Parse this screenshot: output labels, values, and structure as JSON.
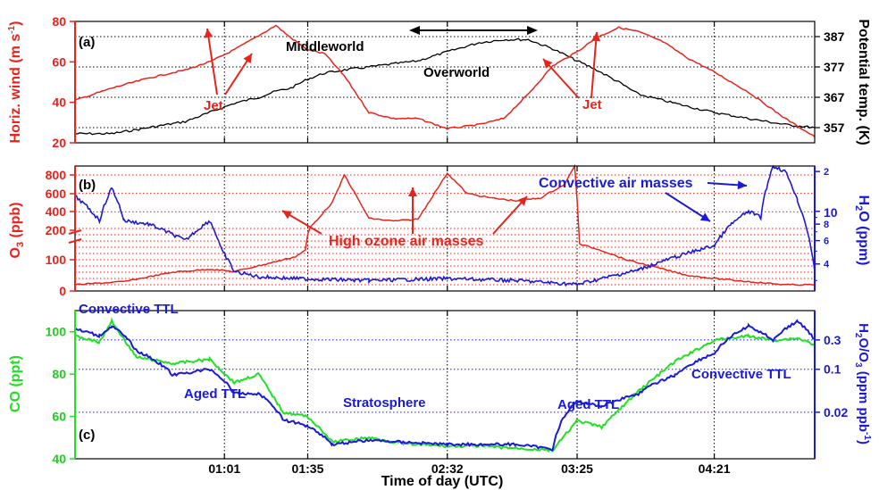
{
  "figure": {
    "xlabel": "Time of day (UTC)",
    "x_ticks": [
      "01:01",
      "01:35",
      "02:32",
      "03:25",
      "04:21"
    ],
    "colors": {
      "red": "#e8231c",
      "black": "#000000",
      "blue": "#1a1ad8",
      "green": "#22e022",
      "grid_red": "#e8231c",
      "grid_blue": "#1a1ad8"
    }
  },
  "chart_data": [
    {
      "type": "line",
      "panel_label": "(a)",
      "ylabel_left": "Horiz. wind (m s-1)",
      "ylabel_left_main": "Horiz. wind (m s",
      "ylabel_left_sup": "-1",
      "ylabel_left_close": ")",
      "ylabel_right": "Potential temp. (K)",
      "ylim_left": [
        20,
        80
      ],
      "ylim_right": [
        352,
        392
      ],
      "yticks_left": [
        "20",
        "40",
        "60",
        "80"
      ],
      "yticks_right": [
        "357",
        "367",
        "377",
        "387"
      ],
      "grid": "dotted horizontal at 357, 367, 377, 387 K",
      "series": [
        {
          "name": "Horiz. wind",
          "axis": "left",
          "x": [
            "00:00",
            "00:15",
            "00:30",
            "00:45",
            "00:55",
            "01:05",
            "01:15",
            "01:22",
            "01:28",
            "01:35",
            "01:42",
            "01:50",
            "02:00",
            "02:10",
            "02:20",
            "02:32",
            "02:45",
            "02:55",
            "03:05",
            "03:15",
            "03:25",
            "03:33",
            "03:42",
            "03:50",
            "04:00",
            "04:10",
            "04:21",
            "04:35",
            "04:50",
            "05:02"
          ],
          "values": [
            41,
            47,
            52,
            56,
            60,
            66,
            73,
            78,
            72,
            66,
            64,
            53,
            35,
            32,
            32,
            27,
            29,
            32,
            44,
            58,
            65,
            72,
            77,
            75,
            70,
            62,
            55,
            45,
            32,
            23
          ]
        },
        {
          "name": "Potential temp.",
          "axis": "right",
          "x": [
            "00:00",
            "00:15",
            "00:30",
            "00:45",
            "00:55",
            "01:05",
            "01:15",
            "01:22",
            "01:28",
            "01:35",
            "01:42",
            "01:50",
            "02:00",
            "02:10",
            "02:20",
            "02:32",
            "02:45",
            "02:55",
            "03:05",
            "03:15",
            "03:25",
            "03:33",
            "03:42",
            "03:50",
            "04:00",
            "04:10",
            "04:21",
            "04:35",
            "04:50",
            "05:02"
          ],
          "values": [
            355,
            355,
            357,
            359,
            362,
            365,
            367,
            369,
            370,
            373,
            375,
            376,
            377,
            378,
            379,
            382,
            385,
            386,
            386,
            383,
            379,
            376,
            372,
            368,
            366,
            364,
            362,
            360,
            358,
            357
          ]
        }
      ],
      "annotations": [
        "Jet",
        "Jet",
        "Middleworld",
        "Overworld"
      ]
    },
    {
      "type": "line",
      "panel_label": "(b)",
      "ylabel_left": "O3 (ppb)",
      "ylabel_left_main": "O",
      "ylabel_left_sub": "3",
      "ylabel_left_close": " (ppb)",
      "ylabel_right": "H2O (ppm)",
      "ylabel_right_main": "H",
      "ylabel_right_sub": "2",
      "ylabel_right_close": "O (ppm)",
      "ylim_left": [
        0,
        800
      ],
      "ylim_right": [
        2.5,
        22
      ],
      "y_scale_left": "broken (linear 0-200, then 200-800)",
      "y_scale_right": "log",
      "yticks_left": [
        "0",
        "100",
        "200",
        "200",
        "400",
        "600",
        "800"
      ],
      "yticks_right": [
        "4",
        "6",
        "8",
        "10",
        "2"
      ],
      "grid": "dotted red horizontal",
      "series": [
        {
          "name": "O3",
          "axis": "left",
          "x": [
            "00:00",
            "00:20",
            "00:40",
            "00:55",
            "01:05",
            "01:20",
            "01:30",
            "01:34",
            "01:36",
            "01:45",
            "01:50",
            "02:00",
            "02:10",
            "02:20",
            "02:32",
            "02:40",
            "02:50",
            "03:00",
            "03:10",
            "03:20",
            "03:24",
            "03:26",
            "03:35",
            "03:45",
            "04:00",
            "04:10",
            "04:21",
            "04:35",
            "04:50",
            "05:02"
          ],
          "values": [
            20,
            30,
            60,
            70,
            62,
            90,
            110,
            130,
            230,
            500,
            800,
            330,
            300,
            320,
            820,
            600,
            550,
            520,
            550,
            700,
            900,
            150,
            130,
            100,
            70,
            50,
            40,
            30,
            20,
            20
          ]
        },
        {
          "name": "H2O",
          "axis": "right",
          "x": [
            "00:00",
            "00:10",
            "00:15",
            "00:20",
            "00:30",
            "00:45",
            "00:55",
            "01:00",
            "01:05",
            "01:15",
            "01:30",
            "02:00",
            "02:32",
            "03:00",
            "03:25",
            "03:35",
            "03:50",
            "04:05",
            "04:21",
            "04:28",
            "04:35",
            "04:40",
            "04:45",
            "04:50",
            "04:55",
            "05:02"
          ],
          "values": [
            13,
            8.5,
            15,
            8.5,
            8,
            6,
            8.5,
            5,
            3.5,
            3.2,
            3.1,
            3.0,
            3.1,
            3.0,
            2.8,
            3.1,
            3.6,
            4.5,
            5.5,
            8,
            10,
            9,
            22,
            20,
            12,
            3.5
          ]
        }
      ],
      "annotations": [
        "High ozone air masses",
        "Convective air masses"
      ]
    },
    {
      "type": "line",
      "panel_label": "(c)",
      "ylabel_left": "CO (ppt)",
      "ylabel_right": "H2O/O3 (ppm ppb-1)",
      "ylabel_right_main": "H",
      "ylabel_right_sub1": "2",
      "ylabel_right_mid": "O/O",
      "ylabel_right_sub2": "3",
      "ylabel_right_rest": " (ppm ppb",
      "ylabel_right_sup": "-1",
      "ylabel_right_close": ")",
      "ylim_left": [
        40,
        110
      ],
      "y_scale_right": "log",
      "yticks_left": [
        "40",
        "60",
        "80",
        "100"
      ],
      "yticks_right": [
        "0.02",
        "0.1",
        "0.3"
      ],
      "grid": "dotted blue horizontal at 0.02, 0.1, 0.3",
      "series": [
        {
          "name": "CO",
          "axis": "left",
          "x": [
            "00:00",
            "00:10",
            "00:15",
            "00:25",
            "00:40",
            "00:55",
            "01:05",
            "01:15",
            "01:25",
            "01:35",
            "01:45",
            "02:00",
            "02:15",
            "02:32",
            "02:45",
            "03:00",
            "03:15",
            "03:25",
            "03:35",
            "03:50",
            "04:05",
            "04:21",
            "04:35",
            "04:45",
            "04:55",
            "05:02"
          ],
          "values": [
            98,
            95,
            105,
            88,
            85,
            87,
            76,
            80,
            62,
            60,
            48,
            50,
            47,
            46,
            46,
            45,
            44,
            58,
            55,
            72,
            86,
            96,
            98,
            96,
            97,
            94
          ]
        },
        {
          "name": "H2O/O3",
          "axis": "right",
          "x": [
            "00:00",
            "00:10",
            "00:15",
            "00:25",
            "00:40",
            "00:55",
            "01:05",
            "01:15",
            "01:25",
            "01:35",
            "01:45",
            "02:00",
            "02:15",
            "02:32",
            "02:45",
            "03:00",
            "03:15",
            "03:25",
            "03:35",
            "03:50",
            "04:05",
            "04:21",
            "04:35",
            "04:45",
            "04:55",
            "05:02"
          ],
          "values": [
            0.45,
            0.35,
            0.5,
            0.2,
            0.08,
            0.1,
            0.04,
            0.04,
            0.015,
            0.012,
            0.006,
            0.007,
            0.0065,
            0.006,
            0.006,
            0.006,
            0.005,
            0.03,
            0.025,
            0.04,
            0.08,
            0.18,
            0.5,
            0.3,
            0.6,
            0.3
          ]
        }
      ],
      "annotations": [
        "Convective TTL",
        "Aged TTL",
        "Stratosphere",
        "Aged TTL",
        "Convective TTL"
      ]
    }
  ]
}
